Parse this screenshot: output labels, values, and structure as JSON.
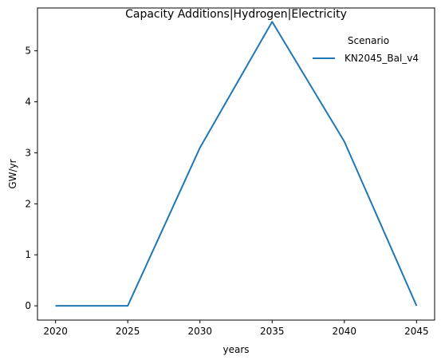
{
  "chart_data": {
    "type": "line",
    "title": "Capacity Additions|Hydrogen|Electricity",
    "xlabel": "years",
    "ylabel": "GW/yr",
    "x": [
      2020,
      2025,
      2030,
      2035,
      2040,
      2045
    ],
    "xticks": [
      "2020",
      "2025",
      "2030",
      "2035",
      "2040",
      "2045"
    ],
    "yticks": [
      "0",
      "1",
      "2",
      "3",
      "4",
      "5"
    ],
    "xlim": [
      2018.75,
      2046.25
    ],
    "ylim": [
      -0.28,
      5.84
    ],
    "grid": false,
    "legend": {
      "title": "Scenario",
      "placement": "top-right"
    },
    "series": [
      {
        "name": "KN2045_Bal_v4",
        "color": "#1f77b4",
        "values": [
          0,
          0,
          3.1,
          5.57,
          3.22,
          0
        ]
      }
    ]
  }
}
